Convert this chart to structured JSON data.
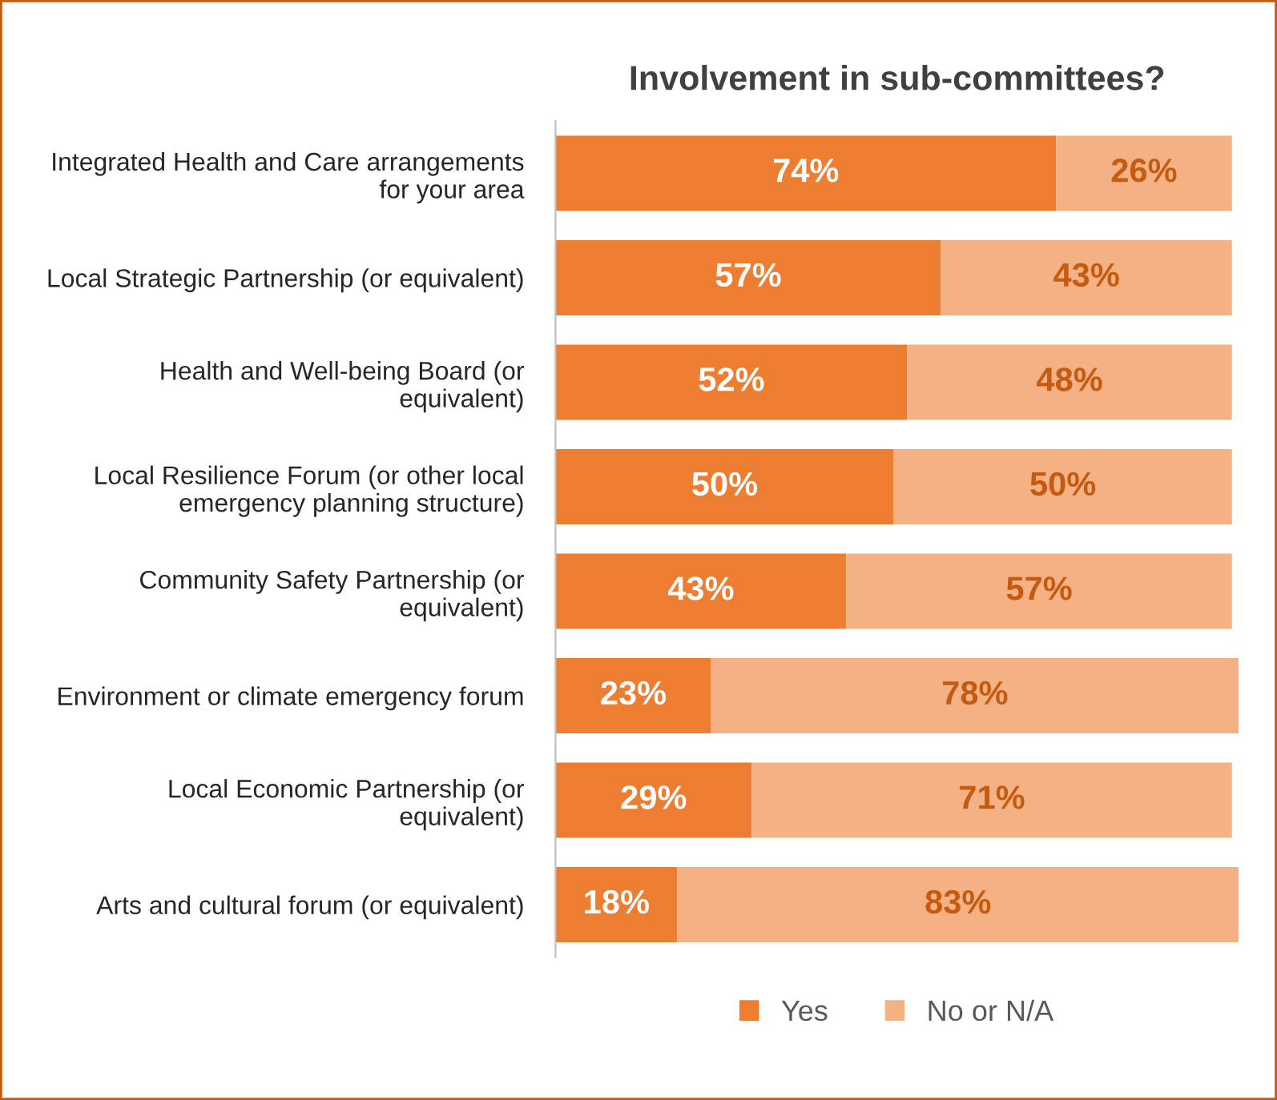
{
  "chart_data": {
    "type": "bar",
    "orientation": "horizontal",
    "stacked": true,
    "legend": "bottom",
    "grid": false,
    "title": "Involvement in sub-committees?",
    "categories": [
      "Integrated Health and Care arrangements\nfor your area",
      "Local Strategic Partnership (or equivalent)",
      "Health and Well-being Board (or\nequivalent)",
      "Local Resilience Forum (or other local\nemergency planning structure)",
      "Community Safety Partnership (or\nequivalent)",
      "Environment or climate emergency forum",
      "Local Economic Partnership (or\nequivalent)",
      "Arts and cultural forum (or equivalent)"
    ],
    "series": [
      {
        "name": "Yes",
        "color": "#ed7d31",
        "values": [
          74,
          57,
          52,
          50,
          43,
          23,
          29,
          18
        ],
        "value_labels": [
          "74%",
          "57%",
          "52%",
          "50%",
          "43%",
          "23%",
          "29%",
          "18%"
        ]
      },
      {
        "name": "No or N/A",
        "color": "#f4b183",
        "values": [
          26,
          43,
          48,
          50,
          57,
          78,
          71,
          83
        ],
        "value_labels": [
          "26%",
          "43%",
          "48%",
          "50%",
          "57%",
          "78%",
          "71%",
          "83%"
        ]
      }
    ]
  }
}
